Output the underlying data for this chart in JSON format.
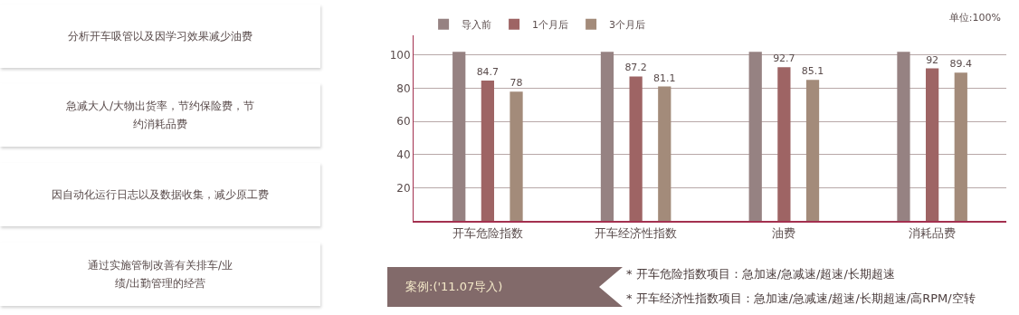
{
  "chart_data": {
    "type": "bar",
    "categories": [
      "开车危险指数",
      "开车经济性指数",
      "油费",
      "消耗品费"
    ],
    "series": [
      {
        "name": "导入前",
        "color": "#968282",
        "values": [
          102,
          102,
          102,
          102
        ],
        "value_labels": [
          null,
          null,
          null,
          null
        ]
      },
      {
        "name": "1个月后",
        "color": "#9e6464",
        "values": [
          84.7,
          87.2,
          92.7,
          92
        ],
        "value_labels": [
          "84.7",
          "87.2",
          "92.7",
          "92"
        ]
      },
      {
        "name": "3个月后",
        "color": "#a38b7a",
        "values": [
          78,
          81.1,
          85.1,
          89.4
        ],
        "value_labels": [
          "78",
          "81.1",
          "85.1",
          "89.4"
        ]
      }
    ],
    "ylim": [
      0,
      112
    ],
    "yticks": [
      20,
      40,
      60,
      80,
      100
    ],
    "grid": "y",
    "legend": "top left",
    "annotations": [
      "分析开车吸管以及因学习效果减少油费",
      "急减大人/大物出货率，节约保险费，节约消耗品费",
      "因自动化运行日志以及数据收集，减少原工费",
      "通过实施管制改善有关排车/业绩/出勤管理的经营",
      "单位:100%",
      "案例:('11.07导入)",
      "* 开车危险指数项目：急加速/急减速/超速/长期超速",
      "* 开车经济性指数项目：急加速/急减速/超速/长期超速/高RPM/空转"
    ]
  }
}
